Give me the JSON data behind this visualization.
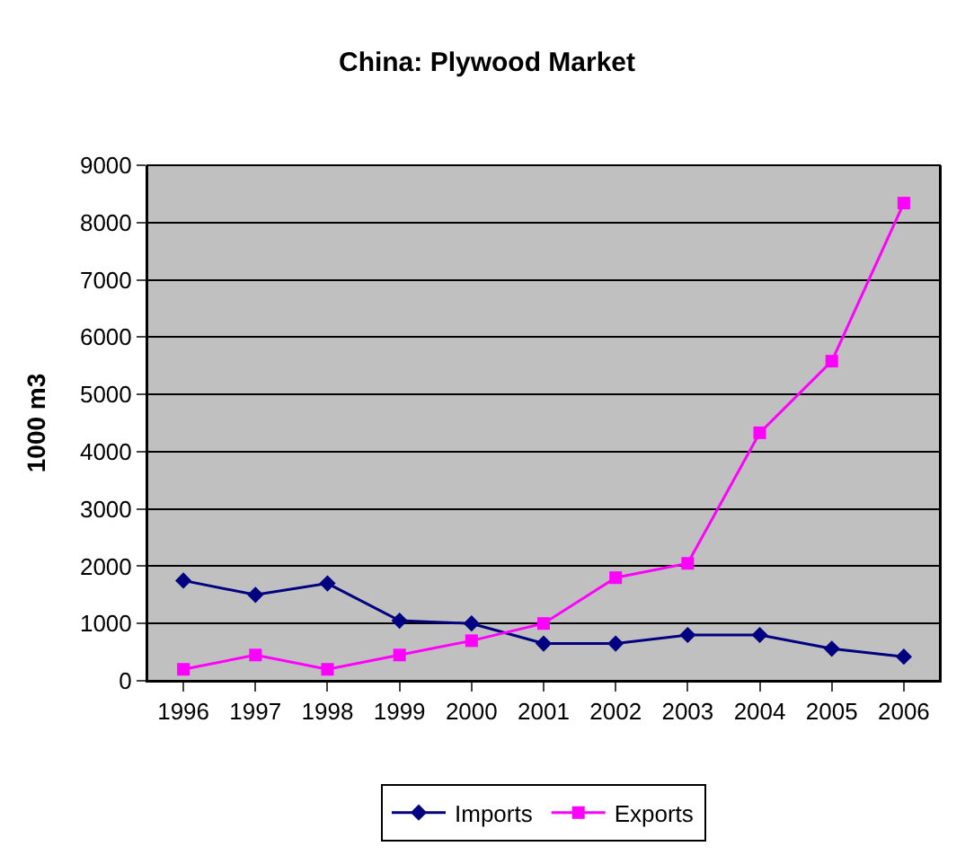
{
  "chart_data": {
    "type": "line",
    "title": "China: Plywood Market",
    "ylabel": "1000 m3",
    "categories": [
      "1996",
      "1997",
      "1998",
      "1999",
      "2000",
      "2001",
      "2002",
      "2003",
      "2004",
      "2005",
      "2006"
    ],
    "series": [
      {
        "name": "Imports",
        "color": "#000080",
        "marker": "diamond",
        "values": [
          1750,
          1500,
          1700,
          1050,
          1000,
          650,
          650,
          800,
          800,
          560,
          420
        ]
      },
      {
        "name": "Exports",
        "color": "#ff00ff",
        "marker": "square",
        "values": [
          200,
          450,
          200,
          450,
          700,
          1000,
          1800,
          2050,
          4330,
          5580,
          8340
        ]
      }
    ],
    "ylim": [
      0,
      9000
    ],
    "yticks": [
      0,
      1000,
      2000,
      3000,
      4000,
      5000,
      6000,
      7000,
      8000,
      9000
    ],
    "grid": "y",
    "legend": "bottom",
    "line_style": "solid"
  }
}
